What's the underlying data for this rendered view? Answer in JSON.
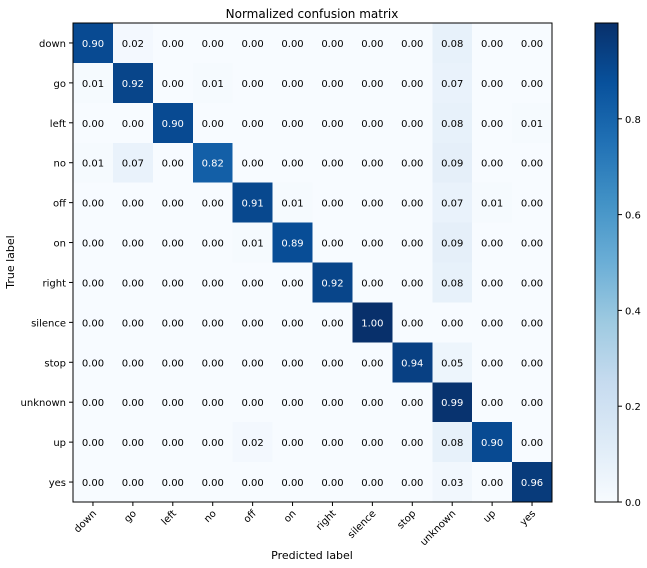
{
  "chart_data": {
    "type": "heatmap",
    "title": "Normalized confusion matrix",
    "xlabel": "Predicted label",
    "ylabel": "True label",
    "categories": [
      "down",
      "go",
      "left",
      "no",
      "off",
      "on",
      "right",
      "silence",
      "stop",
      "unknown",
      "up",
      "yes"
    ],
    "matrix": [
      [
        0.9,
        0.02,
        0.0,
        0.0,
        0.0,
        0.0,
        0.0,
        0.0,
        0.0,
        0.08,
        0.0,
        0.0
      ],
      [
        0.01,
        0.92,
        0.0,
        0.01,
        0.0,
        0.0,
        0.0,
        0.0,
        0.0,
        0.07,
        0.0,
        0.0
      ],
      [
        0.0,
        0.0,
        0.9,
        0.0,
        0.0,
        0.0,
        0.0,
        0.0,
        0.0,
        0.08,
        0.0,
        0.01
      ],
      [
        0.01,
        0.07,
        0.0,
        0.82,
        0.0,
        0.0,
        0.0,
        0.0,
        0.0,
        0.09,
        0.0,
        0.0
      ],
      [
        0.0,
        0.0,
        0.0,
        0.0,
        0.91,
        0.01,
        0.0,
        0.0,
        0.0,
        0.07,
        0.01,
        0.0
      ],
      [
        0.0,
        0.0,
        0.0,
        0.0,
        0.01,
        0.89,
        0.0,
        0.0,
        0.0,
        0.09,
        0.0,
        0.0
      ],
      [
        0.0,
        0.0,
        0.0,
        0.0,
        0.0,
        0.0,
        0.92,
        0.0,
        0.0,
        0.08,
        0.0,
        0.0
      ],
      [
        0.0,
        0.0,
        0.0,
        0.0,
        0.0,
        0.0,
        0.0,
        1.0,
        0.0,
        0.0,
        0.0,
        0.0
      ],
      [
        0.0,
        0.0,
        0.0,
        0.0,
        0.0,
        0.0,
        0.0,
        0.0,
        0.94,
        0.05,
        0.0,
        0.0
      ],
      [
        0.0,
        0.0,
        0.0,
        0.0,
        0.0,
        0.0,
        0.0,
        0.0,
        0.0,
        0.99,
        0.0,
        0.0
      ],
      [
        0.0,
        0.0,
        0.0,
        0.0,
        0.02,
        0.0,
        0.0,
        0.0,
        0.0,
        0.08,
        0.9,
        0.0
      ],
      [
        0.0,
        0.0,
        0.0,
        0.0,
        0.0,
        0.0,
        0.0,
        0.0,
        0.0,
        0.03,
        0.0,
        0.96
      ]
    ],
    "value_range": [
      0,
      1
    ],
    "colorbar": {
      "ticks": [
        "0.0",
        "0.2",
        "0.4",
        "0.6",
        "0.8"
      ],
      "colormap": "Blues",
      "color_low": "#f7fbff",
      "color_high": "#08306b"
    },
    "grid": false
  }
}
